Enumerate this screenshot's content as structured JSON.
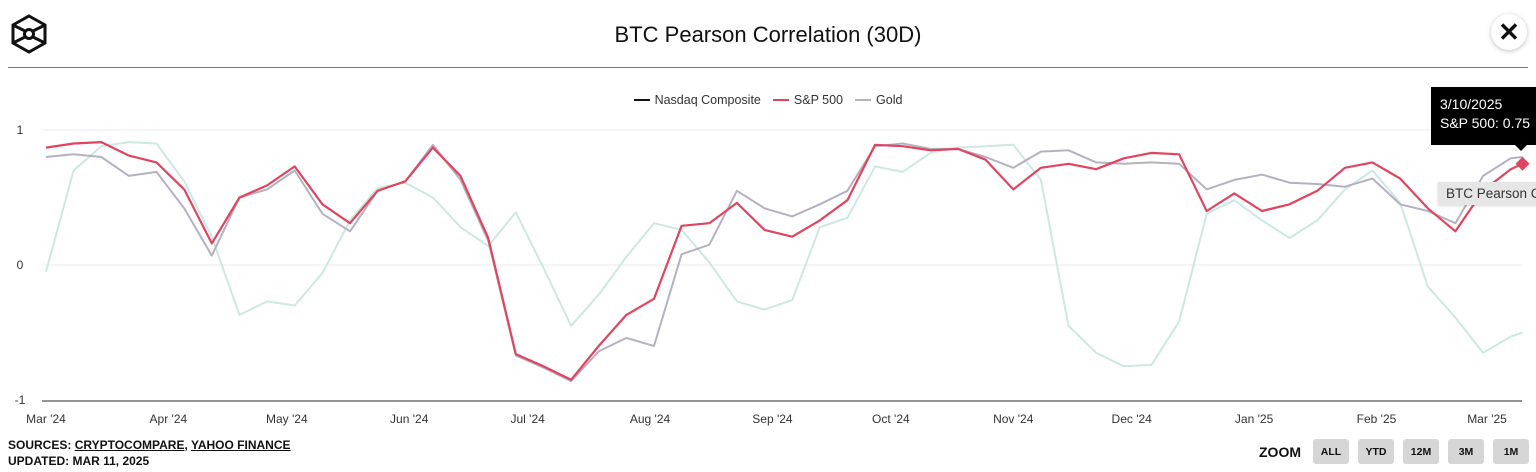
{
  "header": {
    "title": "BTC Pearson Correlation (30D)",
    "logo_icon": "hexagon-cube-logo",
    "close_icon": "close-x-icon",
    "rule_color": "#9b4de0"
  },
  "tooltip": {
    "date": "3/10/2025",
    "text": "S&P 500: 0.75"
  },
  "series_label": "BTC Pearson C",
  "footer": {
    "sources_prefix": "SOURCES: ",
    "source_links": [
      "CRYPTOCOMPARE",
      "YAHOO FINANCE"
    ],
    "separator": ", ",
    "updated": "UPDATED: MAR 11, 2025"
  },
  "zoom": {
    "label": "ZOOM",
    "buttons": [
      "ALL",
      "YTD",
      "12M",
      "3M",
      "1M"
    ]
  },
  "chart_data": {
    "type": "line",
    "title": "BTC Pearson Correlation (30D)",
    "xlabel": "",
    "ylabel": "",
    "ylim": [
      -1,
      1
    ],
    "yticks": [
      "1",
      "0",
      "-1"
    ],
    "xlim": [
      "2024-03-01",
      "2025-03-10"
    ],
    "xticks": [
      {
        "label": "Mar '24",
        "date": "2024-03-01"
      },
      {
        "label": "Apr '24",
        "date": "2024-04-01"
      },
      {
        "label": "May '24",
        "date": "2024-05-01"
      },
      {
        "label": "Jun '24",
        "date": "2024-06-01"
      },
      {
        "label": "Jul '24",
        "date": "2024-07-01"
      },
      {
        "label": "Aug '24",
        "date": "2024-08-01"
      },
      {
        "label": "Sep '24",
        "date": "2024-09-01"
      },
      {
        "label": "Oct '24",
        "date": "2024-10-01"
      },
      {
        "label": "Nov '24",
        "date": "2024-11-01"
      },
      {
        "label": "Dec '24",
        "date": "2024-12-01"
      },
      {
        "label": "Jan '25",
        "date": "2025-01-01"
      },
      {
        "label": "Feb '25",
        "date": "2025-02-01"
      },
      {
        "label": "Mar '25",
        "date": "2025-03-01"
      }
    ],
    "grid": true,
    "legend_placement": "top-center",
    "x": [
      "2024-03-01",
      "2024-03-08",
      "2024-03-15",
      "2024-03-22",
      "2024-03-29",
      "2024-04-05",
      "2024-04-12",
      "2024-04-19",
      "2024-04-26",
      "2024-05-03",
      "2024-05-10",
      "2024-05-17",
      "2024-05-24",
      "2024-05-31",
      "2024-06-07",
      "2024-06-14",
      "2024-06-21",
      "2024-06-28",
      "2024-07-05",
      "2024-07-12",
      "2024-07-19",
      "2024-07-26",
      "2024-08-02",
      "2024-08-09",
      "2024-08-16",
      "2024-08-23",
      "2024-08-30",
      "2024-09-06",
      "2024-09-13",
      "2024-09-20",
      "2024-09-27",
      "2024-10-04",
      "2024-10-11",
      "2024-10-18",
      "2024-10-25",
      "2024-11-01",
      "2024-11-08",
      "2024-11-15",
      "2024-11-22",
      "2024-11-29",
      "2024-12-06",
      "2024-12-13",
      "2024-12-20",
      "2024-12-27",
      "2025-01-03",
      "2025-01-10",
      "2025-01-17",
      "2025-01-24",
      "2025-01-31",
      "2025-02-07",
      "2025-02-14",
      "2025-02-21",
      "2025-02-28",
      "2025-03-07",
      "2025-03-10"
    ],
    "series": [
      {
        "name": "Nasdaq Composite",
        "legend_color": "#111111",
        "color": "#b5b1c2",
        "values": [
          0.8,
          0.82,
          0.8,
          0.66,
          0.69,
          0.42,
          0.07,
          0.5,
          0.56,
          0.7,
          0.38,
          0.25,
          0.55,
          0.62,
          0.89,
          0.63,
          0.18,
          -0.67,
          -0.76,
          -0.86,
          -0.64,
          -0.54,
          -0.6,
          0.08,
          0.15,
          0.55,
          0.42,
          0.36,
          0.45,
          0.55,
          0.88,
          0.9,
          0.86,
          0.86,
          0.8,
          0.72,
          0.84,
          0.85,
          0.76,
          0.75,
          0.76,
          0.75,
          0.56,
          0.63,
          0.67,
          0.61,
          0.6,
          0.58,
          0.64,
          0.45,
          0.4,
          0.31,
          0.66,
          0.79,
          0.8
        ]
      },
      {
        "name": "S&P 500",
        "legend_color": "#e0455f",
        "color": "#e0455f",
        "values": [
          0.87,
          0.9,
          0.91,
          0.81,
          0.76,
          0.56,
          0.16,
          0.5,
          0.59,
          0.73,
          0.45,
          0.31,
          0.55,
          0.62,
          0.87,
          0.66,
          0.2,
          -0.66,
          -0.75,
          -0.85,
          -0.6,
          -0.37,
          -0.25,
          0.29,
          0.31,
          0.46,
          0.26,
          0.21,
          0.33,
          0.48,
          0.89,
          0.88,
          0.85,
          0.86,
          0.78,
          0.56,
          0.72,
          0.75,
          0.71,
          0.79,
          0.83,
          0.82,
          0.4,
          0.53,
          0.4,
          0.45,
          0.55,
          0.72,
          0.76,
          0.64,
          0.42,
          0.25,
          0.55,
          0.71,
          0.75
        ]
      },
      {
        "name": "Gold",
        "legend_color": "#b5b1c2",
        "color": "#cce8e2",
        "values": [
          -0.05,
          0.7,
          0.88,
          0.91,
          0.9,
          0.62,
          0.21,
          -0.37,
          -0.27,
          -0.3,
          -0.06,
          0.33,
          0.57,
          0.61,
          0.5,
          0.28,
          0.14,
          0.39,
          -0.02,
          -0.45,
          -0.22,
          0.06,
          0.31,
          0.26,
          0.02,
          -0.27,
          -0.33,
          -0.26,
          0.28,
          0.35,
          0.73,
          0.69,
          0.83,
          0.87,
          0.88,
          0.89,
          0.63,
          -0.45,
          -0.65,
          -0.75,
          -0.74,
          -0.42,
          0.38,
          0.48,
          0.33,
          0.2,
          0.33,
          0.56,
          0.7,
          0.46,
          -0.16,
          -0.39,
          -0.65,
          -0.53,
          -0.5
        ]
      }
    ],
    "highlight": {
      "series": "S&P 500",
      "date": "2025-03-10",
      "value": 0.75
    }
  }
}
